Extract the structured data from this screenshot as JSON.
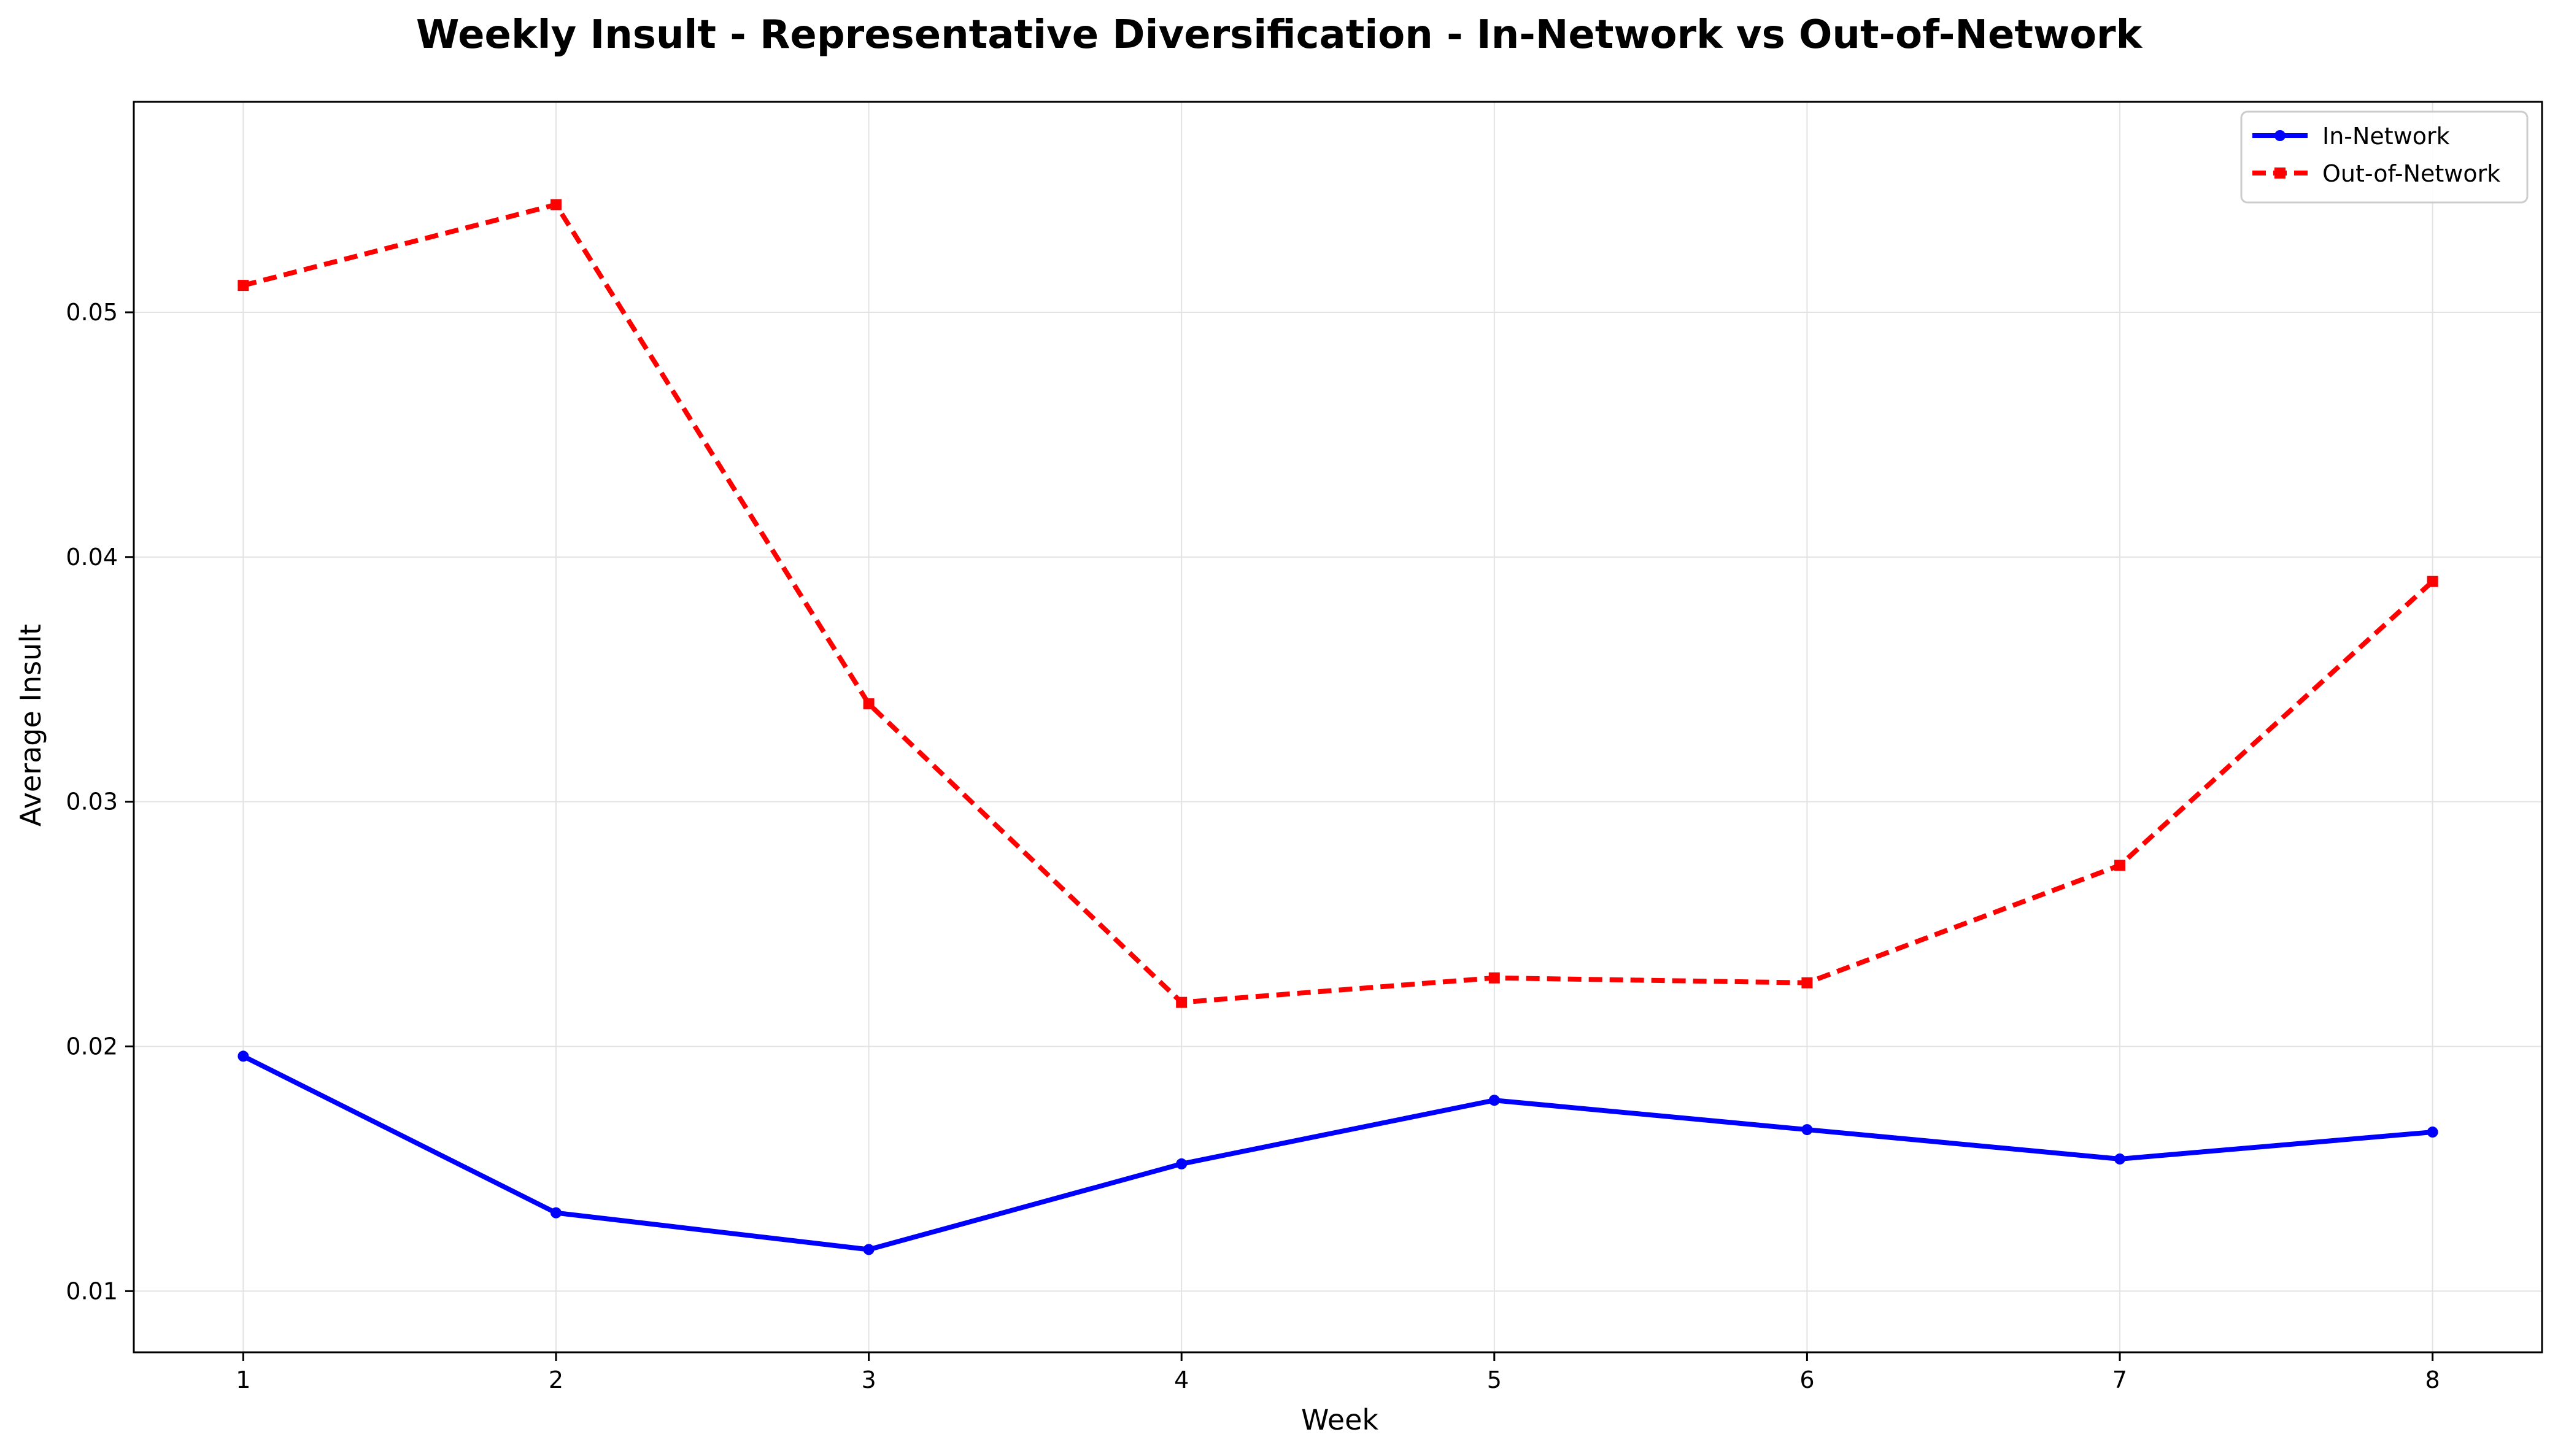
{
  "chart_data": {
    "type": "line",
    "title": "Weekly Insult - Representative Diversification - In-Network vs Out-of-Network",
    "xlabel": "Week",
    "ylabel": "Average Insult",
    "x": [
      1,
      2,
      3,
      4,
      5,
      6,
      7,
      8
    ],
    "xlim": [
      0.65,
      8.35
    ],
    "ylim": [
      0.0075,
      0.0586
    ],
    "xticks": [
      1,
      2,
      3,
      4,
      5,
      6,
      7,
      8
    ],
    "yticks": [
      0.01,
      0.02,
      0.03,
      0.04,
      0.05
    ],
    "ytick_labels": [
      "0.01",
      "0.02",
      "0.03",
      "0.04",
      "0.05"
    ],
    "grid": true,
    "legend_position": "top-right",
    "series": [
      {
        "name": "In-Network",
        "values": [
          0.0196,
          0.0132,
          0.0117,
          0.0152,
          0.0178,
          0.0166,
          0.0154,
          0.0165
        ],
        "color": "#0000ff",
        "line_style": "solid",
        "marker": "circle"
      },
      {
        "name": "Out-of-Network",
        "values": [
          0.0511,
          0.0544,
          0.034,
          0.0218,
          0.0228,
          0.0226,
          0.0274,
          0.039
        ],
        "color": "#ff0000",
        "line_style": "dashed",
        "marker": "square"
      }
    ]
  }
}
